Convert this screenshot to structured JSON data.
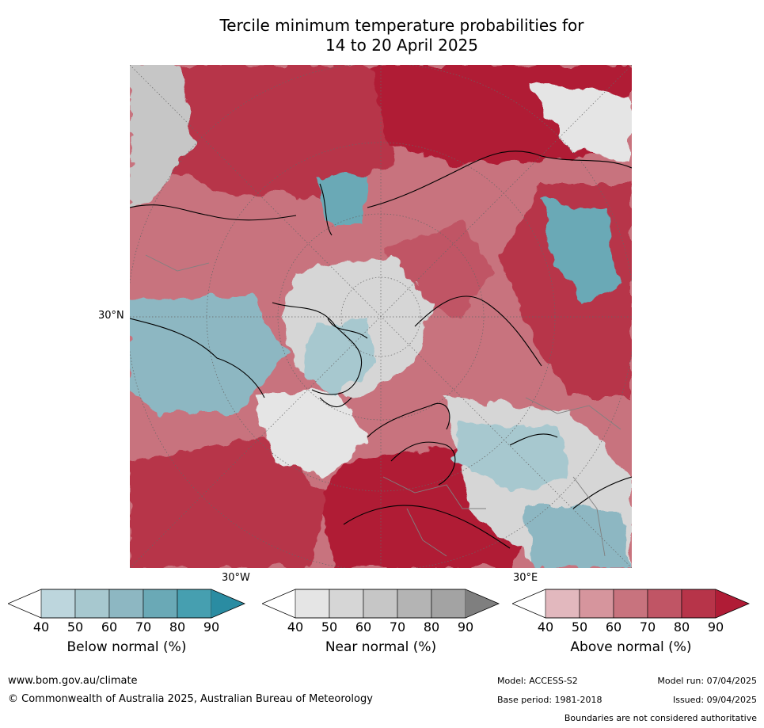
{
  "title_line1": "Tercile minimum temperature probabilities for",
  "title_line2": "14 to 20 April 2025",
  "map": {
    "lat_label": "30°N",
    "lon_labels": [
      "30°W",
      "30°E"
    ],
    "colors": {
      "above": [
        "#e2b8be",
        "#d6959d",
        "#c8737e",
        "#c05565",
        "#b73449",
        "#b01c36"
      ],
      "near": [
        "#e5e5e5",
        "#d6d6d6",
        "#c6c6c6",
        "#b4b4b4",
        "#a3a3a3",
        "#7f7f7f"
      ],
      "below": [
        "#bdd6dd",
        "#a7c8cf",
        "#8db7c2",
        "#6aa9b6",
        "#469fb0",
        "#2a8ca2"
      ]
    }
  },
  "colorbars": [
    {
      "label": "Below normal (%)",
      "ticks": [
        "40",
        "50",
        "60",
        "70",
        "80",
        "90"
      ],
      "colors": [
        "#bdd6dd",
        "#a7c8cf",
        "#8db7c2",
        "#6aa9b6",
        "#469fb0",
        "#2a8ca2"
      ]
    },
    {
      "label": "Near normal (%)",
      "ticks": [
        "40",
        "50",
        "60",
        "70",
        "80",
        "90"
      ],
      "colors": [
        "#e5e5e5",
        "#d6d6d6",
        "#c6c6c6",
        "#b4b4b4",
        "#a3a3a3",
        "#7f7f7f"
      ]
    },
    {
      "label": "Above normal (%)",
      "ticks": [
        "40",
        "50",
        "60",
        "70",
        "80",
        "90"
      ],
      "colors": [
        "#e2b8be",
        "#d6959d",
        "#c8737e",
        "#c05565",
        "#b73449",
        "#b01c36"
      ]
    }
  ],
  "footer": {
    "url": "www.bom.gov.au/climate",
    "copyright": "© Commonwealth of Australia 2025, Australian Bureau of Meteorology",
    "model": "Model: ACCESS-S2",
    "base_period": "Base period: 1981-2018",
    "model_run": "Model run: 07/04/2025",
    "issued": "Issued: 09/04/2025",
    "boundaries": "Boundaries are not considered authoritative"
  }
}
